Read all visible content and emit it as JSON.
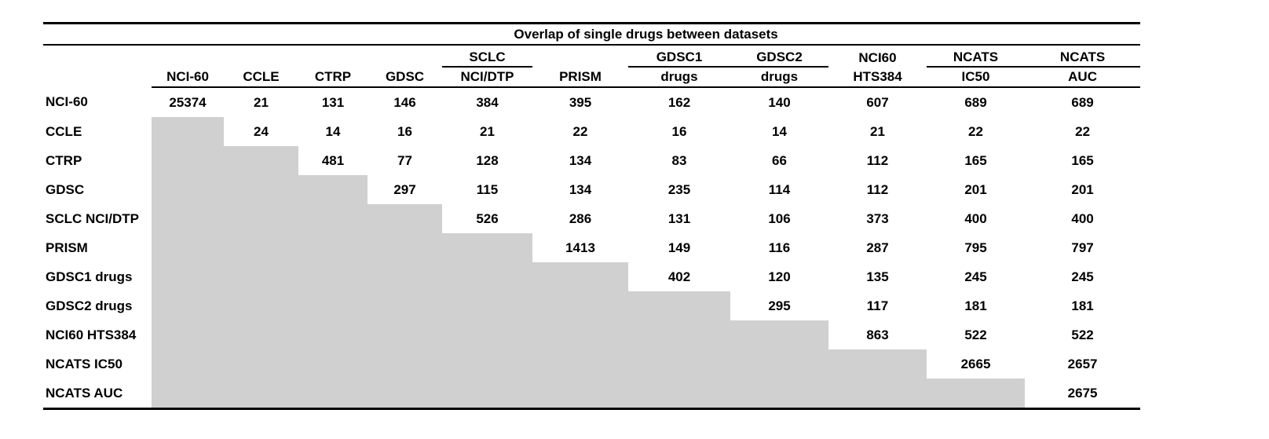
{
  "title": "Overlap of single drugs between datasets",
  "colors": {
    "shade": "#d0d0d0",
    "rule": "#000000",
    "text": "#000000",
    "background": "#ffffff"
  },
  "table": {
    "title": "Overlap of single drugs between datasets",
    "group_headers": [
      "",
      "",
      "",
      "",
      "SCLC",
      "",
      "GDSC1",
      "GDSC2",
      "NCI60",
      "NCATS",
      "NCATS"
    ],
    "group_underline": [
      false,
      false,
      false,
      false,
      true,
      false,
      true,
      true,
      false,
      true,
      true
    ],
    "column_headers": [
      "NCI-60",
      "CCLE",
      "CTRP",
      "GDSC",
      "NCI/DTP",
      "PRISM",
      "drugs",
      "drugs",
      "HTS384",
      "IC50",
      "AUC"
    ],
    "rows": [
      {
        "label": "NCI-60",
        "values": [
          "25374",
          "21",
          "131",
          "146",
          "384",
          "395",
          "162",
          "140",
          "607",
          "689",
          "689"
        ]
      },
      {
        "label": "CCLE",
        "values": [
          null,
          "24",
          "14",
          "16",
          "21",
          "22",
          "16",
          "14",
          "21",
          "22",
          "22"
        ]
      },
      {
        "label": "CTRP",
        "values": [
          null,
          null,
          "481",
          "77",
          "128",
          "134",
          "83",
          "66",
          "112",
          "165",
          "165"
        ]
      },
      {
        "label": "GDSC",
        "values": [
          null,
          null,
          null,
          "297",
          "115",
          "134",
          "235",
          "114",
          "112",
          "201",
          "201"
        ]
      },
      {
        "label": "SCLC NCI/DTP",
        "values": [
          null,
          null,
          null,
          null,
          "526",
          "286",
          "131",
          "106",
          "373",
          "400",
          "400"
        ]
      },
      {
        "label": "PRISM",
        "values": [
          null,
          null,
          null,
          null,
          null,
          "1413",
          "149",
          "116",
          "287",
          "795",
          "797"
        ]
      },
      {
        "label": "GDSC1 drugs",
        "values": [
          null,
          null,
          null,
          null,
          null,
          null,
          "402",
          "120",
          "135",
          "245",
          "245"
        ]
      },
      {
        "label": "GDSC2 drugs",
        "values": [
          null,
          null,
          null,
          null,
          null,
          null,
          null,
          "295",
          "117",
          "181",
          "181"
        ]
      },
      {
        "label": "NCI60 HTS384",
        "values": [
          null,
          null,
          null,
          null,
          null,
          null,
          null,
          null,
          "863",
          "522",
          "522"
        ]
      },
      {
        "label": "NCATS IC50",
        "values": [
          null,
          null,
          null,
          null,
          null,
          null,
          null,
          null,
          null,
          "2665",
          "2657"
        ]
      },
      {
        "label": "NCATS AUC",
        "values": [
          null,
          null,
          null,
          null,
          null,
          null,
          null,
          null,
          null,
          null,
          "2675"
        ]
      }
    ]
  }
}
